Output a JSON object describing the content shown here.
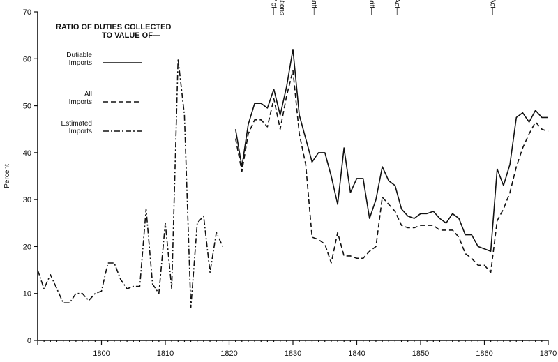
{
  "chart_data": {
    "type": "line",
    "ylabel": "Percent",
    "xlabel": "",
    "xlim": [
      1790,
      1870
    ],
    "ylim": [
      0,
      70
    ],
    "x_ticks": [
      1800,
      1810,
      1820,
      1830,
      1840,
      1850,
      1860,
      1870
    ],
    "y_ticks": [
      0,
      10,
      20,
      30,
      40,
      50,
      60,
      70
    ],
    "grid": false,
    "legend_position": "top-left",
    "legend_title_lines": [
      "RATIO OF DUTIES COLLECTED",
      "TO VALUE OF—"
    ],
    "series": [
      {
        "name": "Dutiable Imports",
        "name_lines": [
          "Dutiable",
          "Imports"
        ],
        "style": "solid",
        "points": [
          [
            1821,
            45
          ],
          [
            1822,
            37
          ],
          [
            1823,
            46
          ],
          [
            1824,
            50.5
          ],
          [
            1825,
            50.5
          ],
          [
            1826,
            49.5
          ],
          [
            1827,
            53.5
          ],
          [
            1828,
            48
          ],
          [
            1829,
            54
          ],
          [
            1830,
            62
          ],
          [
            1831,
            48
          ],
          [
            1832,
            43
          ],
          [
            1833,
            38
          ],
          [
            1834,
            40
          ],
          [
            1835,
            40
          ],
          [
            1836,
            35
          ],
          [
            1837,
            29
          ],
          [
            1838,
            41
          ],
          [
            1839,
            31.5
          ],
          [
            1840,
            34.5
          ],
          [
            1841,
            34.5
          ],
          [
            1842,
            26
          ],
          [
            1843,
            30
          ],
          [
            1844,
            37
          ],
          [
            1845,
            34
          ],
          [
            1846,
            33
          ],
          [
            1847,
            28
          ],
          [
            1848,
            26.5
          ],
          [
            1849,
            26
          ],
          [
            1850,
            27
          ],
          [
            1851,
            27
          ],
          [
            1852,
            27.5
          ],
          [
            1853,
            26
          ],
          [
            1854,
            25
          ],
          [
            1855,
            27
          ],
          [
            1856,
            26
          ],
          [
            1857,
            22.5
          ],
          [
            1858,
            22.5
          ],
          [
            1859,
            20
          ],
          [
            1860,
            19.5
          ],
          [
            1861,
            19
          ],
          [
            1862,
            36.5
          ],
          [
            1863,
            33
          ],
          [
            1864,
            37.5
          ],
          [
            1865,
            47.5
          ],
          [
            1866,
            48.5
          ],
          [
            1867,
            46.5
          ],
          [
            1868,
            49
          ],
          [
            1869,
            47.5
          ],
          [
            1870,
            47.5
          ]
        ]
      },
      {
        "name": "All Imports",
        "name_lines": [
          "All",
          "Imports"
        ],
        "style": "dashed",
        "points": [
          [
            1821,
            43
          ],
          [
            1822,
            36
          ],
          [
            1823,
            44
          ],
          [
            1824,
            47
          ],
          [
            1825,
            47
          ],
          [
            1826,
            45.5
          ],
          [
            1827,
            51.5
          ],
          [
            1828,
            45
          ],
          [
            1829,
            52
          ],
          [
            1830,
            57.5
          ],
          [
            1831,
            44
          ],
          [
            1832,
            37.5
          ],
          [
            1833,
            22
          ],
          [
            1834,
            21.5
          ],
          [
            1835,
            20.5
          ],
          [
            1836,
            16.5
          ],
          [
            1837,
            23
          ],
          [
            1838,
            18
          ],
          [
            1839,
            18
          ],
          [
            1840,
            17.5
          ],
          [
            1841,
            17.5
          ],
          [
            1842,
            19
          ],
          [
            1843,
            20
          ],
          [
            1844,
            30.5
          ],
          [
            1845,
            29
          ],
          [
            1846,
            27.5
          ],
          [
            1847,
            24.5
          ],
          [
            1848,
            24
          ],
          [
            1849,
            24
          ],
          [
            1850,
            24.5
          ],
          [
            1851,
            24.5
          ],
          [
            1852,
            24.5
          ],
          [
            1853,
            23.5
          ],
          [
            1854,
            23.5
          ],
          [
            1855,
            23.5
          ],
          [
            1856,
            22
          ],
          [
            1857,
            18.5
          ],
          [
            1858,
            17.5
          ],
          [
            1859,
            16
          ],
          [
            1860,
            16
          ],
          [
            1861,
            14.5
          ],
          [
            1862,
            25.5
          ],
          [
            1863,
            28
          ],
          [
            1864,
            31.5
          ],
          [
            1865,
            37
          ],
          [
            1866,
            41
          ],
          [
            1867,
            44
          ],
          [
            1868,
            46.5
          ],
          [
            1869,
            45
          ],
          [
            1870,
            44.5
          ]
        ]
      },
      {
        "name": "Estimated Imports",
        "name_lines": [
          "Estimated",
          "Imports"
        ],
        "style": "dashdot",
        "points": [
          [
            1790,
            15
          ],
          [
            1791,
            11
          ],
          [
            1792,
            14
          ],
          [
            1793,
            11
          ],
          [
            1794,
            8
          ],
          [
            1795,
            8
          ],
          [
            1796,
            10
          ],
          [
            1797,
            10
          ],
          [
            1798,
            8.5
          ],
          [
            1799,
            10
          ],
          [
            1800,
            10.5
          ],
          [
            1801,
            16.5
          ],
          [
            1802,
            16.5
          ],
          [
            1803,
            13
          ],
          [
            1804,
            11
          ],
          [
            1805,
            11.5
          ],
          [
            1806,
            11.5
          ],
          [
            1807,
            28
          ],
          [
            1808,
            12
          ],
          [
            1809,
            10
          ],
          [
            1810,
            25
          ],
          [
            1811,
            11
          ],
          [
            1812,
            60
          ],
          [
            1813,
            48
          ],
          [
            1814,
            7
          ],
          [
            1815,
            25
          ],
          [
            1816,
            26.5
          ],
          [
            1817,
            14.5
          ],
          [
            1818,
            23
          ],
          [
            1819,
            20
          ]
        ]
      }
    ],
    "annotations": [
      {
        "text": "Tariff of— Abominations",
        "lines": [
          "Tariff of—",
          "Abominations"
        ],
        "x": 1828
      },
      {
        "text": "Compromise Tariff—",
        "lines": [
          "Compromise Tariff—"
        ],
        "x": 1833
      },
      {
        "text": "Whig Tariff—",
        "lines": [
          "Whig Tariff—"
        ],
        "x": 1842
      },
      {
        "text": "Walker Act—",
        "lines": [
          "Walker Act—"
        ],
        "x": 1846
      },
      {
        "text": "Morrill Act—",
        "lines": [
          "Morrill Act—"
        ],
        "x": 1861
      }
    ]
  }
}
